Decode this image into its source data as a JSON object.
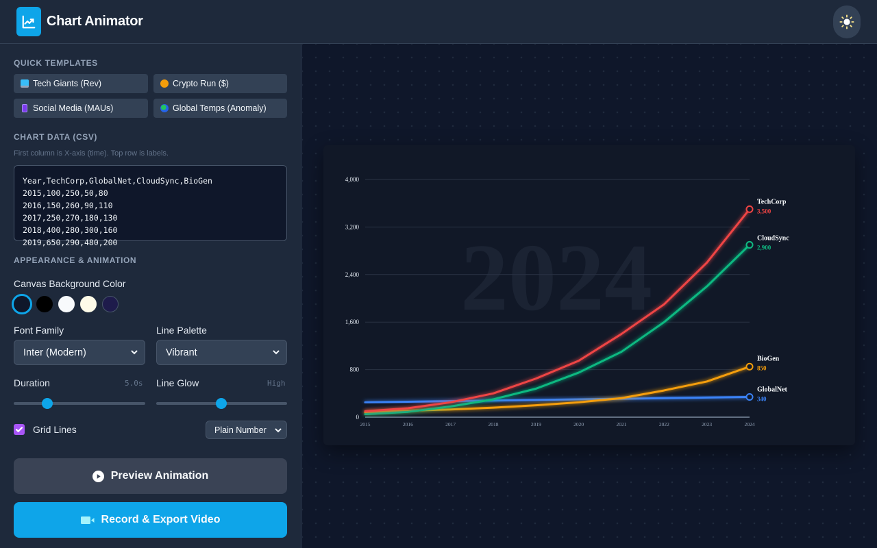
{
  "header": {
    "app_title": "Chart Animator",
    "logo_icon": "chart-line-icon",
    "theme_toggle_icon": "sun-icon"
  },
  "sidebar": {
    "quick_templates": {
      "title": "QUICK TEMPLATES",
      "items": [
        {
          "icon": "laptop-icon",
          "label": "Tech Giants (Rev)"
        },
        {
          "icon": "coin-icon",
          "label": "Crypto Run ($)"
        },
        {
          "icon": "phone-icon",
          "label": "Social Media (MAUs)"
        },
        {
          "icon": "globe-icon",
          "label": "Global Temps (Anomaly)"
        }
      ]
    },
    "chart_data": {
      "title": "CHART DATA (CSV)",
      "hint": "First column is X-axis (time). Top row is labels.",
      "csv_value": "Year,TechCorp,GlobalNet,CloudSync,BioGen\n2015,100,250,50,80\n2016,150,260,90,110\n2017,250,270,180,130\n2018,400,280,300,160\n2019,650,290,480,200"
    },
    "appearance": {
      "title": "APPEARANCE & ANIMATION",
      "bg_color_label": "Canvas Background Color",
      "bg_colors": [
        "#0f172a",
        "#000000",
        "#f8fafc",
        "#fefbe8",
        "#1e1b4b"
      ],
      "bg_selected_index": 0,
      "font_family_label": "Font Family",
      "font_family_value": "Inter (Modern)",
      "line_palette_label": "Line Palette",
      "line_palette_value": "Vibrant",
      "duration_label": "Duration",
      "duration_value": "5.0s",
      "duration_slider_pct": 25,
      "glow_label": "Line Glow",
      "glow_value": "High",
      "glow_slider_pct": 50,
      "grid_lines_label": "Grid Lines",
      "grid_lines_checked": true,
      "number_format_value": "Plain Number"
    },
    "buttons": {
      "preview_label": "Preview Animation",
      "record_label": "Record & Export Video"
    }
  },
  "colors": {
    "accent": "#0ea5e9",
    "checkbox": "#a855f7",
    "techcorp": "#ef4444",
    "globalnet": "#3b82f6",
    "cloudsync": "#10b981",
    "biogen": "#f59e0b"
  },
  "chart_data": {
    "type": "line",
    "title": "",
    "watermark": "2024",
    "xlabel": "",
    "ylabel": "",
    "x": [
      "2015",
      "2016",
      "2017",
      "2018",
      "2019",
      "2020",
      "2021",
      "2022",
      "2023",
      "2024"
    ],
    "yticks": [
      "0",
      "800",
      "1,600",
      "2,400",
      "3,200",
      "4,000"
    ],
    "ylim": [
      0,
      4000
    ],
    "grid": true,
    "legend_position": "end-of-line labels",
    "series": [
      {
        "name": "TechCorp",
        "color": "#ef4444",
        "end_label": "3,500",
        "values": [
          100,
          150,
          250,
          400,
          650,
          950,
          1400,
          1900,
          2600,
          3500
        ]
      },
      {
        "name": "CloudSync",
        "color": "#10b981",
        "end_label": "2,900",
        "values": [
          50,
          90,
          180,
          300,
          480,
          750,
          1100,
          1600,
          2200,
          2900
        ]
      },
      {
        "name": "BioGen",
        "color": "#f59e0b",
        "end_label": "850",
        "values": [
          80,
          110,
          130,
          160,
          200,
          250,
          320,
          450,
          600,
          850
        ]
      },
      {
        "name": "GlobalNet",
        "color": "#3b82f6",
        "end_label": "340",
        "values": [
          250,
          260,
          270,
          280,
          290,
          300,
          310,
          320,
          330,
          340
        ]
      }
    ]
  }
}
